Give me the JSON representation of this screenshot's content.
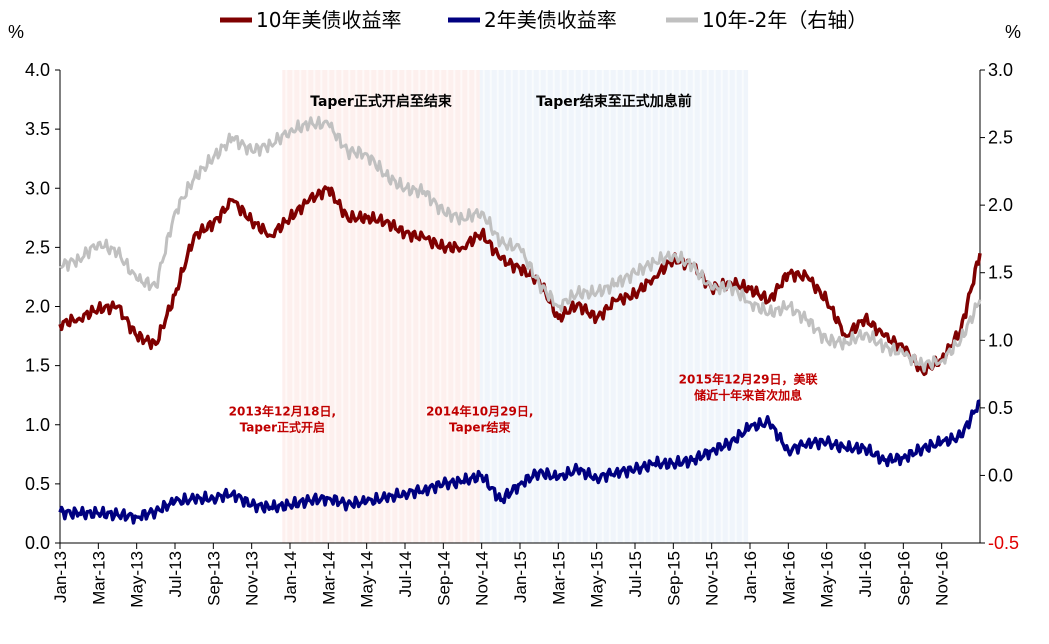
{
  "chart_data": {
    "type": "line",
    "left_axis": {
      "unit": "%",
      "ylim": [
        0.0,
        4.0
      ],
      "ticks": [
        "0.0",
        "0.5",
        "1.0",
        "1.5",
        "2.0",
        "2.5",
        "3.0",
        "3.5",
        "4.0"
      ]
    },
    "right_axis": {
      "unit": "%",
      "ylim": [
        -0.5,
        3.0
      ],
      "ticks": [
        "-0.5",
        "0.0",
        "0.5",
        "1.0",
        "1.5",
        "2.0",
        "2.5",
        "3.0"
      ],
      "negative_color": "#e00000"
    },
    "x_ticks": [
      "Jan-13",
      "Mar-13",
      "May-13",
      "Jul-13",
      "Sep-13",
      "Nov-13",
      "Jan-14",
      "Mar-14",
      "May-14",
      "Jul-14",
      "Sep-14",
      "Nov-14",
      "Jan-15",
      "Mar-15",
      "May-15",
      "Jul-15",
      "Sep-15",
      "Nov-15",
      "Jan-16",
      "Mar-16",
      "May-16",
      "Jul-16",
      "Sep-16",
      "Nov-16"
    ],
    "x_range_months": [
      0,
      24
    ],
    "legend": {
      "placement": "top"
    },
    "grid": false,
    "series": [
      {
        "name": "10年美债收益率",
        "axis": "left",
        "color": "#7f0000",
        "x": [
          0,
          0.5,
          1,
          1.5,
          2,
          2.5,
          3,
          3.5,
          4,
          4.5,
          5,
          5.5,
          6,
          6.5,
          7,
          7.5,
          8,
          8.5,
          9,
          9.5,
          10,
          10.5,
          11,
          11.5,
          12,
          12.5,
          13,
          13.5,
          14,
          14.5,
          15,
          15.5,
          16,
          16.5,
          17,
          17.5,
          18,
          18.5,
          19,
          19.5,
          20,
          20.5,
          21,
          21.5,
          22,
          22.5,
          23,
          23.5,
          24
        ],
        "values": [
          1.85,
          1.9,
          1.98,
          2.0,
          1.75,
          1.68,
          2.1,
          2.6,
          2.7,
          2.9,
          2.72,
          2.6,
          2.75,
          2.9,
          3.0,
          2.75,
          2.75,
          2.72,
          2.62,
          2.58,
          2.5,
          2.5,
          2.62,
          2.4,
          2.32,
          2.22,
          1.9,
          2.02,
          1.9,
          2.05,
          2.1,
          2.25,
          2.4,
          2.35,
          2.15,
          2.2,
          2.15,
          2.05,
          2.28,
          2.25,
          2.05,
          1.75,
          1.9,
          1.75,
          1.65,
          1.45,
          1.55,
          1.8,
          2.45
        ]
      },
      {
        "name": "2年美债收益率",
        "axis": "left",
        "color": "#000080",
        "x": [
          0,
          0.5,
          1,
          1.5,
          2,
          2.5,
          3,
          3.5,
          4,
          4.5,
          5,
          5.5,
          6,
          6.5,
          7,
          7.5,
          8,
          8.5,
          9,
          9.5,
          10,
          10.5,
          11,
          11.5,
          12,
          12.5,
          13,
          13.5,
          14,
          14.5,
          15,
          15.5,
          16,
          16.5,
          17,
          17.5,
          18,
          18.5,
          19,
          19.5,
          20,
          20.5,
          21,
          21.5,
          22,
          22.5,
          23,
          23.5,
          24
        ],
        "values": [
          0.26,
          0.25,
          0.25,
          0.24,
          0.22,
          0.27,
          0.35,
          0.37,
          0.38,
          0.42,
          0.32,
          0.3,
          0.32,
          0.36,
          0.38,
          0.33,
          0.35,
          0.38,
          0.42,
          0.45,
          0.5,
          0.52,
          0.57,
          0.36,
          0.5,
          0.6,
          0.55,
          0.62,
          0.55,
          0.6,
          0.62,
          0.67,
          0.67,
          0.7,
          0.78,
          0.85,
          0.98,
          1.02,
          0.78,
          0.85,
          0.85,
          0.8,
          0.8,
          0.7,
          0.72,
          0.8,
          0.85,
          0.9,
          1.2
        ]
      },
      {
        "name": "10年-2年（右轴）",
        "axis": "right",
        "color": "#c0c0c0",
        "x": [
          0,
          0.5,
          1,
          1.5,
          2,
          2.5,
          3,
          3.5,
          4,
          4.5,
          5,
          5.5,
          6,
          6.5,
          7,
          7.5,
          8,
          8.5,
          9,
          9.5,
          10,
          10.5,
          11,
          11.5,
          12,
          12.5,
          13,
          13.5,
          14,
          14.5,
          15,
          15.5,
          16,
          16.5,
          17,
          17.5,
          18,
          18.5,
          19,
          19.5,
          20,
          20.5,
          21,
          21.5,
          22,
          22.5,
          23,
          23.5,
          24
        ],
        "values": [
          1.55,
          1.6,
          1.72,
          1.65,
          1.45,
          1.4,
          1.95,
          2.2,
          2.35,
          2.5,
          2.4,
          2.45,
          2.55,
          2.6,
          2.6,
          2.4,
          2.38,
          2.22,
          2.12,
          2.1,
          1.95,
          1.9,
          1.95,
          1.72,
          1.68,
          1.42,
          1.25,
          1.35,
          1.35,
          1.42,
          1.5,
          1.58,
          1.63,
          1.55,
          1.38,
          1.4,
          1.28,
          1.2,
          1.25,
          1.15,
          1.0,
          0.98,
          1.05,
          0.95,
          0.9,
          0.82,
          0.85,
          1.0,
          1.3
        ]
      }
    ],
    "shaded_regions": [
      {
        "label": "Taper正式开启至结束",
        "x_start": 11.6,
        "x_end": 21.9,
        "color": "#fbe4e0"
      },
      {
        "label": "Taper结束至正式加息前",
        "x_start": 21.9,
        "x_end": 35.9,
        "color": "#e3ecf7"
      }
    ],
    "annotations": [
      {
        "lines": [
          "2013年12月18日,",
          "Taper正式开启"
        ],
        "x": 11.6,
        "y": 1.08
      },
      {
        "lines": [
          "2014年10月29日,",
          "Taper结束"
        ],
        "x": 21.9,
        "y": 1.08
      },
      {
        "lines": [
          "2015年12月29日，美联",
          "储近十年来首次加息"
        ],
        "x": 35.9,
        "y": 1.35
      }
    ]
  }
}
